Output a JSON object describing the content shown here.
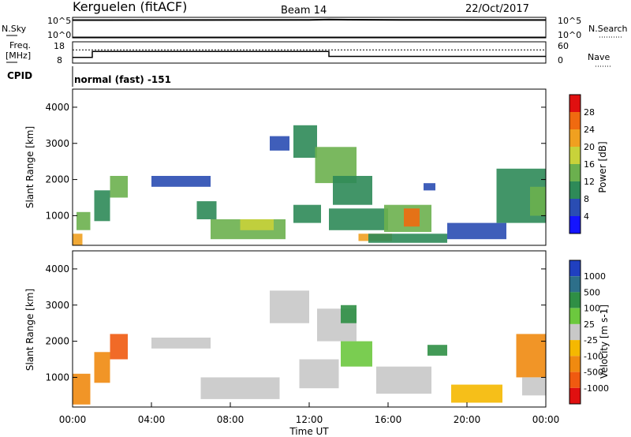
{
  "header": {
    "station": "Kerguelen (fitACF)",
    "beam": "Beam 14",
    "date": "22/Oct/2017"
  },
  "top_panels": {
    "nsky_label": "N.Sky",
    "nsearch_label": "N.Search",
    "nsky_ticks": [
      "10^5",
      "10^0"
    ],
    "nsearch_ticks": [
      "10^5",
      "10^0"
    ],
    "freq_label_line1": "Freq.",
    "freq_label_line2": "[MHz]",
    "freq_ticks": [
      "18",
      "8"
    ],
    "nave_label": "Nave",
    "nave_ticks": [
      "60",
      "0"
    ],
    "cpid_label": "CPID",
    "cpid_text": "normal (fast) -151"
  },
  "chart_data": [
    {
      "type": "line",
      "title": "",
      "xlabel": "",
      "ylabel": "N.Sky / N.Search",
      "ylog": true,
      "ylim": [
        1,
        100000
      ],
      "series": [
        {
          "name": "N.Sky",
          "x": [
            0,
            6,
            12,
            13,
            14,
            18,
            24
          ],
          "y": [
            30000,
            32000,
            35000,
            42000,
            38000,
            33000,
            32000
          ]
        },
        {
          "name": "N.Search",
          "x": [
            0,
            24
          ],
          "y": [
            1,
            1
          ]
        }
      ]
    },
    {
      "type": "line",
      "title": "",
      "ylabel": "Freq. [MHz]",
      "ylim": [
        8,
        18
      ],
      "y2label": "Nave",
      "y2lim": [
        0,
        60
      ],
      "series": [
        {
          "name": "Freq.",
          "x": [
            0,
            1,
            1,
            13,
            13,
            24
          ],
          "y": [
            10.5,
            10.5,
            13.5,
            13.5,
            11,
            11
          ]
        },
        {
          "name": "Nave",
          "x": [
            0,
            24
          ],
          "y": [
            38,
            38
          ]
        }
      ]
    },
    {
      "type": "heatmap",
      "title": "",
      "xlabel": "",
      "ylabel": "Slant Range [km]",
      "xlim": [
        0,
        24
      ],
      "ylim": [
        180,
        4500
      ],
      "y_ticks": [
        "1000",
        "2000",
        "3000",
        "4000"
      ],
      "colorbar": {
        "label": "Power [dB]",
        "ticks": [
          "4",
          "8",
          "12",
          "16",
          "20",
          "24",
          "28"
        ],
        "colors": [
          "#1414ff",
          "#2a4db3",
          "#2e8a58",
          "#6bb04e",
          "#c8d23a",
          "#f0a020",
          "#f06a10",
          "#e01010"
        ]
      },
      "regions": [
        {
          "x0": 0.0,
          "x1": 0.5,
          "y0": 180,
          "y1": 500,
          "level": 5
        },
        {
          "x0": 0.2,
          "x1": 0.9,
          "y0": 600,
          "y1": 1100,
          "level": 3
        },
        {
          "x0": 1.1,
          "x1": 1.9,
          "y0": 850,
          "y1": 1700,
          "level": 2
        },
        {
          "x0": 1.9,
          "x1": 2.8,
          "y0": 1500,
          "y1": 2100,
          "level": 3
        },
        {
          "x0": 4.0,
          "x1": 7.0,
          "y0": 1800,
          "y1": 2100,
          "level": 1
        },
        {
          "x0": 6.3,
          "x1": 7.3,
          "y0": 900,
          "y1": 1400,
          "level": 2
        },
        {
          "x0": 7.0,
          "x1": 10.8,
          "y0": 350,
          "y1": 900,
          "level": 3
        },
        {
          "x0": 8.5,
          "x1": 10.2,
          "y0": 600,
          "y1": 900,
          "level": 4
        },
        {
          "x0": 10.0,
          "x1": 11.0,
          "y0": 2800,
          "y1": 3200,
          "level": 1
        },
        {
          "x0": 11.2,
          "x1": 12.4,
          "y0": 2600,
          "y1": 3500,
          "level": 2
        },
        {
          "x0": 12.3,
          "x1": 14.4,
          "y0": 1900,
          "y1": 2900,
          "level": 3
        },
        {
          "x0": 11.2,
          "x1": 12.6,
          "y0": 800,
          "y1": 1300,
          "level": 2
        },
        {
          "x0": 13.2,
          "x1": 15.2,
          "y0": 1300,
          "y1": 2100,
          "level": 2
        },
        {
          "x0": 13.0,
          "x1": 16.0,
          "y0": 600,
          "y1": 1200,
          "level": 2
        },
        {
          "x0": 15.8,
          "x1": 18.2,
          "y0": 550,
          "y1": 1300,
          "level": 3
        },
        {
          "x0": 16.8,
          "x1": 17.6,
          "y0": 700,
          "y1": 1200,
          "level": 6
        },
        {
          "x0": 14.5,
          "x1": 16.2,
          "y0": 300,
          "y1": 500,
          "level": 5
        },
        {
          "x0": 15.0,
          "x1": 19.0,
          "y0": 250,
          "y1": 500,
          "level": 2
        },
        {
          "x0": 17.8,
          "x1": 18.4,
          "y0": 1700,
          "y1": 1900,
          "level": 1
        },
        {
          "x0": 19.0,
          "x1": 22.0,
          "y0": 350,
          "y1": 800,
          "level": 1
        },
        {
          "x0": 21.5,
          "x1": 24.0,
          "y0": 800,
          "y1": 2300,
          "level": 2
        },
        {
          "x0": 23.2,
          "x1": 24.0,
          "y0": 1000,
          "y1": 1800,
          "level": 3
        }
      ]
    },
    {
      "type": "heatmap",
      "title": "",
      "xlabel": "Time UT",
      "ylabel": "Slant Range [km]",
      "xlim": [
        0,
        24
      ],
      "ylim": [
        180,
        4500
      ],
      "x_ticks": [
        "00:00",
        "04:00",
        "08:00",
        "12:00",
        "16:00",
        "20:00",
        "00:00"
      ],
      "y_ticks": [
        "1000",
        "2000",
        "3000",
        "4000"
      ],
      "colorbar": {
        "label": "Velocity [m s-1]",
        "ticks": [
          "1000",
          "500",
          "100",
          "25",
          "-25",
          "-100",
          "-500",
          "-1000"
        ],
        "colors": [
          "#2040c0",
          "#2d6f8a",
          "#2f8f45",
          "#6cc83e",
          "#c8c8c8",
          "#f5b800",
          "#f08a10",
          "#f05a10",
          "#e01010"
        ]
      },
      "regions": [
        {
          "x0": 0.0,
          "x1": 0.9,
          "y0": 250,
          "y1": 1100,
          "level": 6
        },
        {
          "x0": 1.1,
          "x1": 1.9,
          "y0": 850,
          "y1": 1700,
          "level": 6
        },
        {
          "x0": 1.9,
          "x1": 2.8,
          "y0": 1500,
          "y1": 2200,
          "level": 7
        },
        {
          "x0": 4.0,
          "x1": 7.0,
          "y0": 1800,
          "y1": 2100,
          "level": 4
        },
        {
          "x0": 6.5,
          "x1": 10.5,
          "y0": 400,
          "y1": 1000,
          "level": 4
        },
        {
          "x0": 10.0,
          "x1": 12.0,
          "y0": 2500,
          "y1": 3400,
          "level": 4
        },
        {
          "x0": 12.4,
          "x1": 14.4,
          "y0": 2000,
          "y1": 2900,
          "level": 4
        },
        {
          "x0": 13.6,
          "x1": 14.4,
          "y0": 2500,
          "y1": 3000,
          "level": 2
        },
        {
          "x0": 11.5,
          "x1": 13.5,
          "y0": 700,
          "y1": 1500,
          "level": 4
        },
        {
          "x0": 13.6,
          "x1": 15.2,
          "y0": 1300,
          "y1": 2000,
          "level": 3
        },
        {
          "x0": 15.4,
          "x1": 18.2,
          "y0": 550,
          "y1": 1300,
          "level": 4
        },
        {
          "x0": 18.0,
          "x1": 19.0,
          "y0": 1600,
          "y1": 1900,
          "level": 2
        },
        {
          "x0": 19.2,
          "x1": 21.8,
          "y0": 300,
          "y1": 800,
          "level": 5
        },
        {
          "x0": 22.5,
          "x1": 24.0,
          "y0": 1000,
          "y1": 2200,
          "level": 6
        },
        {
          "x0": 22.8,
          "x1": 24.0,
          "y0": 500,
          "y1": 1000,
          "level": 4
        }
      ]
    }
  ]
}
